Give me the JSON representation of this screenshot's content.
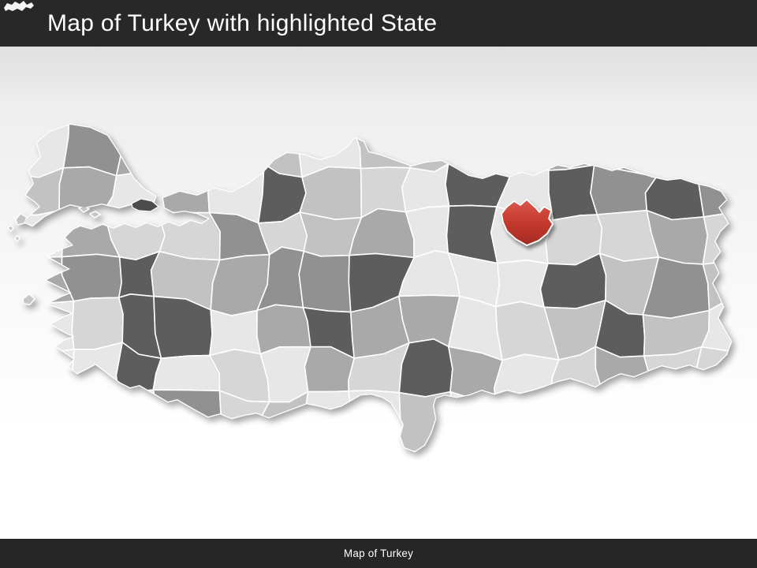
{
  "header": {
    "title": "Map of Turkey with highlighted State",
    "background": "#282828",
    "text_color": "#ffffff",
    "icon": "mini-map-icon",
    "icon_color": "#ffffff"
  },
  "footer": {
    "label": "Map of Turkey",
    "background": "#262626",
    "text_color": "#ffffff"
  },
  "map": {
    "country": "Turkey",
    "type": "province-patchwork-map",
    "province_border_color": "#ffffff",
    "base_color": "#d4d4d4",
    "islands_color": "#c6c6c6",
    "dark_province_color": "#5d5d5d",
    "istanbul_sliver_color": "#4c4c4c",
    "province_palette": [
      "#e7e7e7",
      "#d6d6d6",
      "#c2c2c2",
      "#a9a9a9",
      "#919191"
    ],
    "background_top": "#e0e0e0",
    "background_bottom": "#ffffff",
    "highlighted_state": {
      "fill": "#c83b30",
      "gradient_top": "#da5a4e",
      "gradient_bottom": "#a42a22",
      "border": "#ffffff"
    }
  }
}
